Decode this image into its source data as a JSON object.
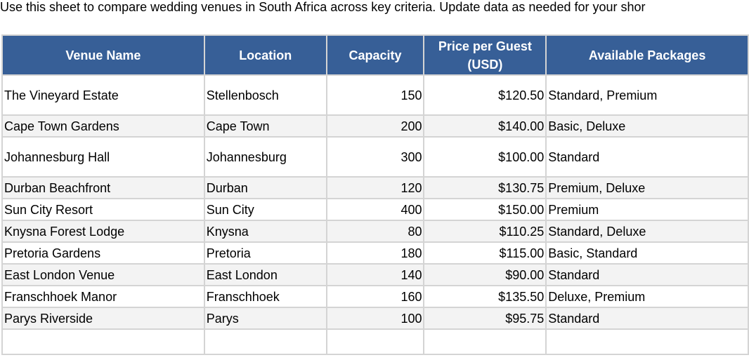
{
  "intro_text": "Use this sheet to compare wedding venues in South Africa across key criteria. Update data as needed for your shor",
  "colors": {
    "header_bg": "#375f97",
    "header_text": "#ffffff",
    "grid_line": "#d4d4d4",
    "alt_row": "#f3f3f3"
  },
  "headers": {
    "venue": "Venue Name",
    "location": "Location",
    "capacity": "Capacity",
    "price": "Price per Guest (USD)",
    "packages": "Available Packages"
  },
  "rows": [
    {
      "venue": "The Vineyard Estate",
      "location": "Stellenbosch",
      "capacity": "150",
      "price": "$120.50",
      "packages": "Standard, Premium"
    },
    {
      "venue": "Cape Town Gardens",
      "location": "Cape Town",
      "capacity": "200",
      "price": "$140.00",
      "packages": "Basic, Deluxe"
    },
    {
      "venue": "Johannesburg Hall",
      "location": "Johannesburg",
      "capacity": "300",
      "price": "$100.00",
      "packages": "Standard"
    },
    {
      "venue": "Durban Beachfront",
      "location": "Durban",
      "capacity": "120",
      "price": "$130.75",
      "packages": "Premium, Deluxe"
    },
    {
      "venue": "Sun City Resort",
      "location": "Sun City",
      "capacity": "400",
      "price": "$150.00",
      "packages": "Premium"
    },
    {
      "venue": "Knysna Forest Lodge",
      "location": "Knysna",
      "capacity": "80",
      "price": "$110.25",
      "packages": "Standard, Deluxe"
    },
    {
      "venue": "Pretoria Gardens",
      "location": "Pretoria",
      "capacity": "180",
      "price": "$115.00",
      "packages": "Basic, Standard"
    },
    {
      "venue": "East London Venue",
      "location": "East London",
      "capacity": "140",
      "price": "$90.00",
      "packages": "Standard"
    },
    {
      "venue": "Franschhoek Manor",
      "location": "Franschhoek",
      "capacity": "160",
      "price": "$135.50",
      "packages": "Deluxe, Premium"
    },
    {
      "venue": "Parys Riverside",
      "location": "Parys",
      "capacity": "100",
      "price": "$95.75",
      "packages": "Standard"
    }
  ]
}
